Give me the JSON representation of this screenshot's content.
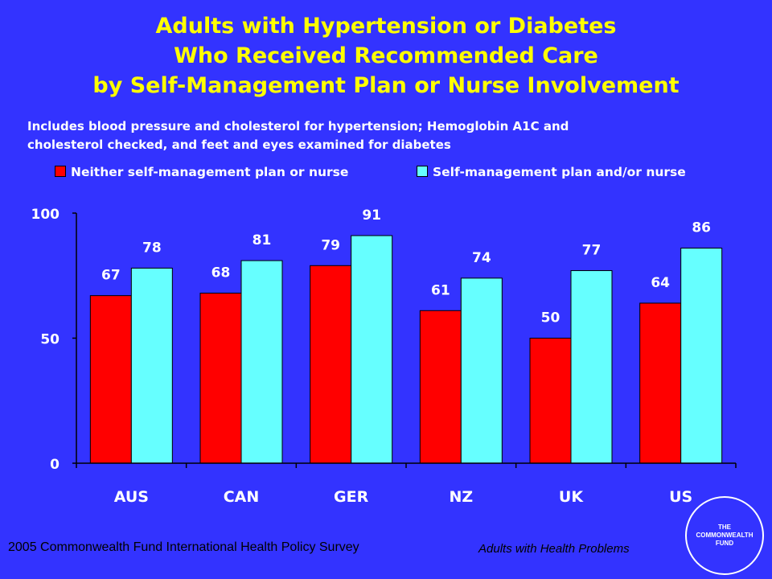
{
  "title": {
    "line1": "Adults with Hypertension or Diabetes",
    "line2": "Who Received Recommended Care",
    "line3": "by Self-Management Plan or Nurse Involvement"
  },
  "subtitle": {
    "line1": "Includes blood pressure and cholesterol for hypertension; Hemoglobin A1C and",
    "line2": "cholesterol checked, and feet and eyes examined for diabetes"
  },
  "colors": {
    "background": "#3333ff",
    "title": "#ffff00",
    "series1": "#ff0000",
    "series2": "#66ffff"
  },
  "chart_data": {
    "type": "bar",
    "categories": [
      "AUS",
      "CAN",
      "GER",
      "NZ",
      "UK",
      "US"
    ],
    "series": [
      {
        "name": "Neither self-management plan or nurse",
        "values": [
          67,
          68,
          79,
          61,
          50,
          64
        ]
      },
      {
        "name": "Self-management plan and/or nurse",
        "values": [
          78,
          81,
          91,
          74,
          77,
          86
        ]
      }
    ],
    "ylim": [
      0,
      100
    ],
    "yticks": [
      0,
      50,
      100
    ],
    "legend": "top",
    "grid": false
  },
  "footer": {
    "source": "2005 Commonwealth Fund International Health Policy Survey",
    "series_label": "Adults with Health Problems"
  },
  "logo": {
    "line1": "THE",
    "line2": "COMMONWEALTH",
    "line3": "FUND"
  }
}
